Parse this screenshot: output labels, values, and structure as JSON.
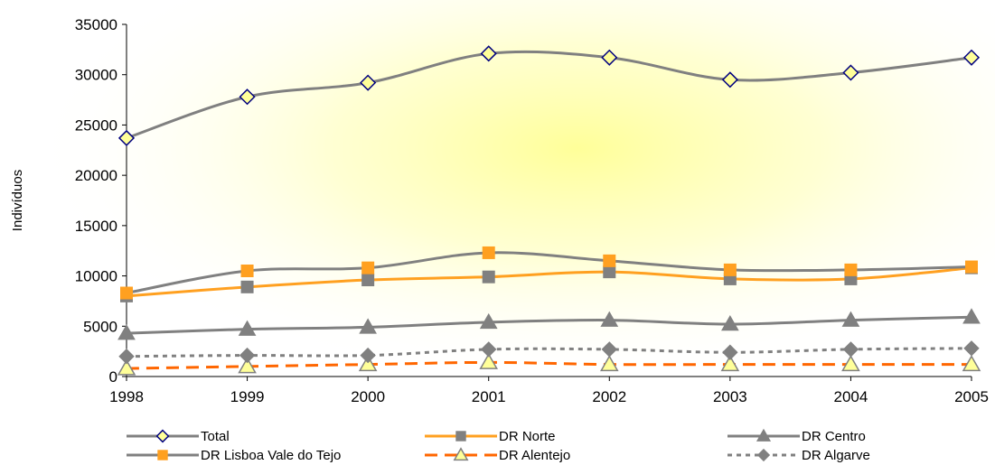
{
  "chart_data": {
    "type": "line",
    "title": "",
    "xlabel": "",
    "ylabel": "Indivíduos",
    "x": [
      "1998",
      "1999",
      "2000",
      "2001",
      "2002",
      "2003",
      "2004",
      "2005"
    ],
    "yticks": [
      "0",
      "5000",
      "10000",
      "15000",
      "20000",
      "25000",
      "30000",
      "35000"
    ],
    "ylim": [
      0,
      35000
    ],
    "grid": false,
    "legend_position": "bottom",
    "series": [
      {
        "name": "Total",
        "color": "#808080",
        "marker": "diamond-open",
        "marker_fill": "#FFFF99",
        "marker_stroke": "#000080",
        "dash": "solid",
        "values": [
          23700,
          27800,
          29200,
          32100,
          31700,
          29500,
          30200,
          31700
        ]
      },
      {
        "name": "DR Norte",
        "color": "#FFA020",
        "marker": "square",
        "marker_fill": "#808080",
        "marker_stroke": "#808080",
        "dash": "solid",
        "values": [
          8000,
          8900,
          9600,
          9900,
          10400,
          9700,
          9700,
          10800
        ]
      },
      {
        "name": "DR Centro",
        "color": "#808080",
        "marker": "triangle",
        "marker_fill": "#808080",
        "marker_stroke": "#808080",
        "dash": "solid",
        "values": [
          4300,
          4700,
          4900,
          5400,
          5600,
          5200,
          5600,
          5900
        ]
      },
      {
        "name": "DR Lisboa Vale do Tejo",
        "color": "#808080",
        "marker": "square",
        "marker_fill": "#FFA020",
        "marker_stroke": "#FFA020",
        "dash": "solid",
        "values": [
          8300,
          10500,
          10800,
          12300,
          11500,
          10600,
          10600,
          10900
        ]
      },
      {
        "name": "DR Alentejo",
        "color": "#FF6600",
        "marker": "triangle-open",
        "marker_fill": "#FFFF99",
        "marker_stroke": "#808080",
        "dash": "dashed",
        "values": [
          800,
          1000,
          1200,
          1400,
          1200,
          1200,
          1200,
          1200
        ]
      },
      {
        "name": "DR Algarve",
        "color": "#808080",
        "marker": "diamond",
        "marker_fill": "#808080",
        "marker_stroke": "#808080",
        "dash": "dotted",
        "values": [
          2000,
          2100,
          2100,
          2700,
          2700,
          2400,
          2700,
          2800
        ]
      }
    ]
  }
}
